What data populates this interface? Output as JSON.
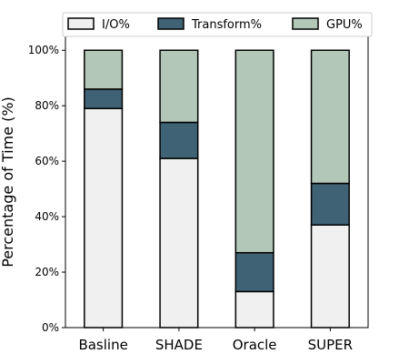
{
  "chart_data": {
    "type": "bar",
    "stacked": true,
    "categories": [
      "Basline",
      "SHADE",
      "Oracle",
      "SUPER"
    ],
    "series": [
      {
        "name": "I/O%",
        "color": "#f0f0f0",
        "values": [
          79,
          61,
          13,
          37
        ]
      },
      {
        "name": "Transform%",
        "color": "#3f6274",
        "values": [
          7,
          13,
          14,
          15
        ]
      },
      {
        "name": "GPU%",
        "color": "#b2c7b8",
        "values": [
          14,
          26,
          73,
          48
        ]
      }
    ],
    "ylabel": "Percentage of Time (%)",
    "xlabel": "",
    "title": "",
    "ylim": [
      0,
      100
    ],
    "yticks": [
      0,
      20,
      40,
      60,
      80,
      100
    ],
    "ytick_labels": [
      "0%",
      "20%",
      "40%",
      "60%",
      "80%",
      "100%"
    ],
    "grid": false,
    "legend_position": "top"
  }
}
